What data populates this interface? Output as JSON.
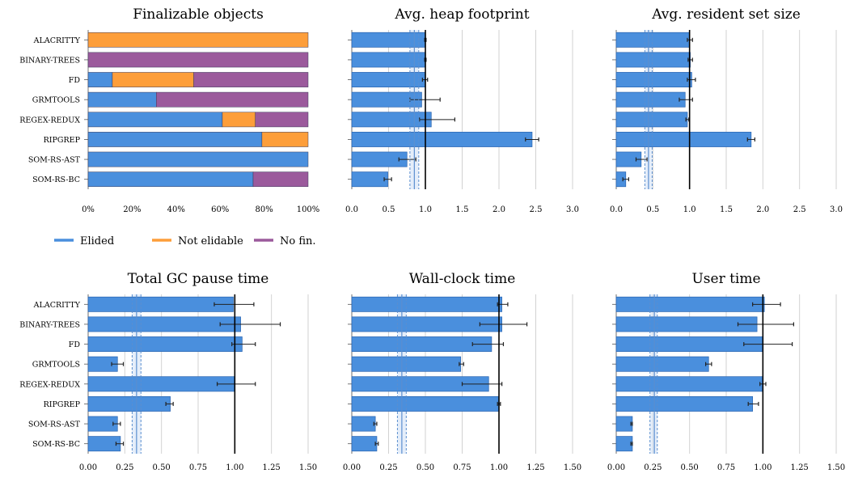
{
  "colors": {
    "elided": "#4a8fdd",
    "not_elidable": "#fd9e3a",
    "no_fin": "#9b5a9c",
    "bar": "#4a8fdd",
    "bar_edge": "#2a64b0",
    "grid": "#d2d2d2",
    "ref_line": "#000000",
    "ci_line": "#5b8fcf"
  },
  "legend": [
    {
      "label": "Elided",
      "color": "#4a8fdd"
    },
    {
      "label": "Not elidable",
      "color": "#fd9e3a"
    },
    {
      "label": "No fin.",
      "color": "#9b5a9c"
    }
  ],
  "chart_data": [
    {
      "type": "bar",
      "stacked": true,
      "orientation": "horizontal",
      "title": "Finalizable objects",
      "categories": [
        "ALACRITTY",
        "BINARY-TREES",
        "FD",
        "GRMTOOLS",
        "REGEX-REDUX",
        "RIPGREP",
        "SOM-RS-AST",
        "SOM-RS-BC"
      ],
      "series": [
        {
          "name": "Elided",
          "values": [
            0,
            0,
            11,
            31,
            61,
            79,
            100,
            75
          ]
        },
        {
          "name": "Not elidable",
          "values": [
            100,
            0,
            37,
            0,
            15,
            21,
            0,
            0
          ]
        },
        {
          "name": "No fin.",
          "values": [
            0,
            100,
            52,
            69,
            24,
            0,
            0,
            25
          ]
        }
      ],
      "xlim": [
        0,
        100
      ],
      "xticks": [
        "0%",
        "20%",
        "40%",
        "60%",
        "80%",
        "100%"
      ],
      "legend_position": "bottom"
    },
    {
      "type": "bar",
      "orientation": "horizontal",
      "title": "Avg. heap footprint",
      "categories": [
        "ALACRITTY",
        "BINARY-TREES",
        "FD",
        "GRMTOOLS",
        "REGEX-REDUX",
        "RIPGREP",
        "SOM-RS-AST",
        "SOM-RS-BC"
      ],
      "values": [
        1.0,
        1.0,
        1.0,
        0.95,
        1.08,
        2.45,
        0.75,
        0.49
      ],
      "err_low": [
        0.99,
        0.99,
        0.96,
        0.79,
        0.92,
        2.36,
        0.64,
        0.44
      ],
      "err_high": [
        1.01,
        1.01,
        1.03,
        1.2,
        1.4,
        2.54,
        0.87,
        0.54
      ],
      "reference": 1.0,
      "geomean": 0.85,
      "geomean_ci": [
        0.79,
        0.91
      ],
      "xlim": [
        0,
        3.0
      ],
      "xticks": [
        "0.0",
        "0.5",
        "1.0",
        "1.5",
        "2.0",
        "2.5",
        "3.0"
      ]
    },
    {
      "type": "bar",
      "orientation": "horizontal",
      "title": "Avg. resident set size",
      "categories": [
        "ALACRITTY",
        "BINARY-TREES",
        "FD",
        "GRMTOOLS",
        "REGEX-REDUX",
        "RIPGREP",
        "SOM-RS-AST",
        "SOM-RS-BC"
      ],
      "values": [
        1.0,
        1.01,
        1.03,
        0.94,
        0.97,
        1.84,
        0.34,
        0.13
      ],
      "err_low": [
        0.97,
        0.98,
        0.97,
        0.86,
        0.95,
        1.79,
        0.27,
        0.09
      ],
      "err_high": [
        1.04,
        1.04,
        1.08,
        1.04,
        0.99,
        1.89,
        0.42,
        0.17
      ],
      "reference": 1.0,
      "geomean": 0.44,
      "geomean_ci": [
        0.39,
        0.49
      ],
      "xlim": [
        0,
        3.0
      ],
      "xticks": [
        "0.0",
        "0.5",
        "1.0",
        "1.5",
        "2.0",
        "2.5",
        "3.0"
      ]
    },
    {
      "type": "bar",
      "orientation": "horizontal",
      "title": "Total GC pause time",
      "categories": [
        "ALACRITTY",
        "BINARY-TREES",
        "FD",
        "GRMTOOLS",
        "REGEX-REDUX",
        "RIPGREP",
        "SOM-RS-AST",
        "SOM-RS-BC"
      ],
      "values": [
        0.99,
        1.04,
        1.05,
        0.2,
        1.0,
        0.56,
        0.2,
        0.22
      ],
      "err_low": [
        0.86,
        0.9,
        0.98,
        0.16,
        0.88,
        0.53,
        0.17,
        0.19
      ],
      "err_high": [
        1.13,
        1.31,
        1.14,
        0.24,
        1.14,
        0.58,
        0.22,
        0.24
      ],
      "reference": 1.0,
      "geomean": 0.33,
      "geomean_ci": [
        0.3,
        0.36
      ],
      "xlim": [
        0,
        1.5
      ],
      "xticks": [
        "0.00",
        "0.25",
        "0.50",
        "0.75",
        "1.00",
        "1.25",
        "1.50"
      ]
    },
    {
      "type": "bar",
      "orientation": "horizontal",
      "title": "Wall-clock time",
      "categories": [
        "ALACRITTY",
        "BINARY-TREES",
        "FD",
        "GRMTOOLS",
        "REGEX-REDUX",
        "RIPGREP",
        "SOM-RS-AST",
        "SOM-RS-BC"
      ],
      "values": [
        1.02,
        1.02,
        0.95,
        0.74,
        0.93,
        1.0,
        0.16,
        0.17
      ],
      "err_low": [
        0.99,
        0.87,
        0.82,
        0.73,
        0.75,
        0.99,
        0.15,
        0.16
      ],
      "err_high": [
        1.06,
        1.19,
        1.03,
        0.76,
        1.02,
        1.01,
        0.17,
        0.18
      ],
      "reference": 1.0,
      "geomean": 0.34,
      "geomean_ci": [
        0.31,
        0.37
      ],
      "xlim": [
        0,
        1.5
      ],
      "xticks": [
        "0.00",
        "0.25",
        "0.50",
        "0.75",
        "1.00",
        "1.25",
        "1.50"
      ]
    },
    {
      "type": "bar",
      "orientation": "horizontal",
      "title": "User time",
      "categories": [
        "ALACRITTY",
        "BINARY-TREES",
        "FD",
        "GRMTOOLS",
        "REGEX-REDUX",
        "RIPGREP",
        "SOM-RS-AST",
        "SOM-RS-BC"
      ],
      "values": [
        1.01,
        0.96,
        1.0,
        0.63,
        1.0,
        0.93,
        0.11,
        0.11
      ],
      "err_low": [
        0.93,
        0.83,
        0.87,
        0.61,
        0.98,
        0.9,
        0.1,
        0.1
      ],
      "err_high": [
        1.12,
        1.21,
        1.2,
        0.65,
        1.02,
        0.97,
        0.11,
        0.11
      ],
      "reference": 1.0,
      "geomean": 0.26,
      "geomean_ci": [
        0.23,
        0.28
      ],
      "xlim": [
        0,
        1.5
      ],
      "xticks": [
        "0.00",
        "0.25",
        "0.50",
        "0.75",
        "1.00",
        "1.25",
        "1.50"
      ]
    }
  ]
}
